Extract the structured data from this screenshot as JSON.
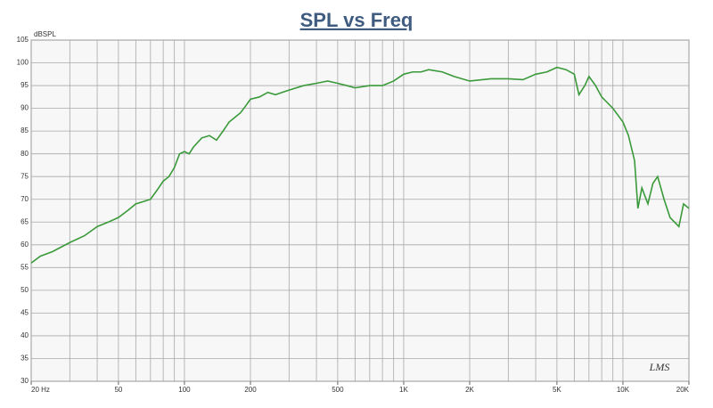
{
  "chart_data": {
    "type": "line",
    "title": "SPL vs Freq",
    "y_label": "dBSPL",
    "logo": "LMS",
    "x_scale": "log",
    "grid": true,
    "xlim": [
      20,
      20000
    ],
    "ylim": [
      30,
      105
    ],
    "yticks": [
      30,
      35,
      40,
      45,
      50,
      55,
      60,
      65,
      70,
      75,
      80,
      85,
      90,
      95,
      100,
      105
    ],
    "xticks": [
      {
        "value": 20,
        "label": "20 Hz"
      },
      50,
      100,
      200,
      500,
      {
        "value": 1000,
        "label": "1K"
      },
      {
        "value": 2000,
        "label": "2K"
      },
      {
        "value": 5000,
        "label": "5K"
      },
      {
        "value": 10000,
        "label": "10K"
      },
      {
        "value": 20000,
        "label": "20K"
      }
    ],
    "xgrid": [
      20,
      30,
      40,
      50,
      60,
      70,
      80,
      90,
      100,
      200,
      300,
      400,
      500,
      600,
      700,
      800,
      900,
      1000,
      2000,
      3000,
      4000,
      5000,
      6000,
      7000,
      8000,
      9000,
      10000,
      20000
    ],
    "x": [
      20,
      22,
      25,
      30,
      35,
      40,
      45,
      50,
      55,
      60,
      65,
      70,
      75,
      80,
      85,
      90,
      95,
      100,
      105,
      110,
      120,
      130,
      140,
      150,
      160,
      180,
      190,
      200,
      220,
      240,
      260,
      300,
      350,
      400,
      450,
      500,
      550,
      600,
      700,
      800,
      900,
      1000,
      1100,
      1200,
      1300,
      1500,
      1700,
      2000,
      2500,
      3000,
      3500,
      4000,
      4500,
      5000,
      5500,
      6000,
      6300,
      6700,
      7000,
      7500,
      8000,
      9000,
      10000,
      10600,
      11300,
      11700,
      12200,
      13000,
      13700,
      14400,
      15400,
      16400,
      18000,
      18900,
      20000
    ],
    "series": [
      {
        "name": "SPL",
        "color": "#3a9a3a",
        "values": [
          56,
          57.5,
          58.5,
          60.5,
          62,
          64,
          65,
          66,
          67.5,
          69,
          69.5,
          70,
          72,
          74,
          75,
          77,
          80,
          80.5,
          80,
          81.5,
          83.5,
          84,
          83,
          85,
          87,
          89,
          90.5,
          92,
          92.5,
          93.5,
          93,
          94,
          95,
          95.5,
          96,
          95.5,
          95,
          94.5,
          95,
          95,
          96,
          97.5,
          98,
          98,
          98.5,
          98,
          97,
          96,
          96.5,
          96.5,
          96.3,
          97.5,
          98,
          99,
          98.5,
          97.5,
          93,
          95,
          97,
          95,
          92.5,
          90,
          87,
          84,
          78.5,
          68,
          72.5,
          69,
          73.5,
          75,
          70,
          66,
          64,
          69,
          68
        ]
      }
    ]
  }
}
